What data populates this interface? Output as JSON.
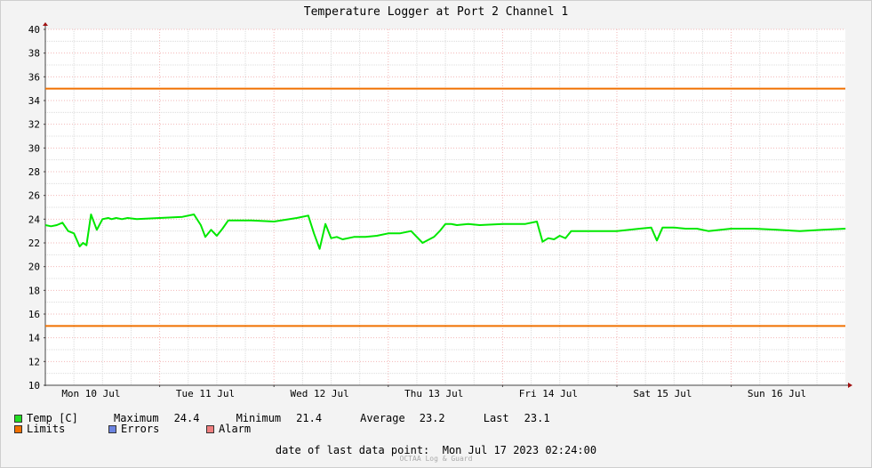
{
  "chart_data": {
    "type": "line",
    "title": "Temperature Logger at Port 2 Channel 1",
    "ylim": [
      10,
      40
    ],
    "yticks": [
      10,
      12,
      14,
      16,
      18,
      20,
      22,
      24,
      26,
      28,
      30,
      32,
      34,
      36,
      38,
      40
    ],
    "x_domain_days": [
      0,
      7
    ],
    "xtick_labels": [
      "Mon 10 Jul",
      "Tue 11 Jul",
      "Wed 12 Jul",
      "Thu 13 Jul",
      "Fri 14 Jul",
      "Sat 15 Jul",
      "Sun 16 Jul"
    ],
    "grid": true,
    "series": [
      {
        "name": "Temp [C]",
        "color": "#00e800",
        "x": [
          0.0,
          0.05,
          0.1,
          0.15,
          0.2,
          0.25,
          0.3,
          0.33,
          0.36,
          0.4,
          0.45,
          0.5,
          0.55,
          0.58,
          0.62,
          0.67,
          0.72,
          0.8,
          1.0,
          1.2,
          1.3,
          1.36,
          1.4,
          1.45,
          1.5,
          1.55,
          1.6,
          1.65,
          1.7,
          1.8,
          2.0,
          2.2,
          2.3,
          2.35,
          2.4,
          2.45,
          2.5,
          2.55,
          2.6,
          2.7,
          2.8,
          2.9,
          3.0,
          3.1,
          3.2,
          3.3,
          3.4,
          3.45,
          3.5,
          3.55,
          3.6,
          3.7,
          3.8,
          4.0,
          4.2,
          4.3,
          4.35,
          4.4,
          4.45,
          4.5,
          4.55,
          4.6,
          4.7,
          4.8,
          5.0,
          5.2,
          5.3,
          5.35,
          5.4,
          5.5,
          5.6,
          5.7,
          5.8,
          6.0,
          6.2,
          6.4,
          6.6,
          6.8,
          7.0
        ],
        "values": [
          23.5,
          23.4,
          23.5,
          23.7,
          23.0,
          22.8,
          21.7,
          22.0,
          21.8,
          24.4,
          23.1,
          24.0,
          24.1,
          24.0,
          24.1,
          24.0,
          24.1,
          24.0,
          24.1,
          24.2,
          24.4,
          23.5,
          22.5,
          23.1,
          22.6,
          23.2,
          23.9,
          23.9,
          23.9,
          23.9,
          23.8,
          24.1,
          24.3,
          22.8,
          21.5,
          23.6,
          22.4,
          22.5,
          22.3,
          22.5,
          22.5,
          22.6,
          22.8,
          22.8,
          23.0,
          22.0,
          22.5,
          23.0,
          23.6,
          23.6,
          23.5,
          23.6,
          23.5,
          23.6,
          23.6,
          23.8,
          22.1,
          22.4,
          22.3,
          22.6,
          22.4,
          23.0,
          23.0,
          23.0,
          23.0,
          23.2,
          23.3,
          22.2,
          23.3,
          23.3,
          23.2,
          23.2,
          23.0,
          23.2,
          23.2,
          23.1,
          23.0,
          23.1,
          23.2
        ]
      },
      {
        "name": "Limits",
        "color": "#f07000",
        "kind": "hlines",
        "values": [
          35,
          15
        ]
      }
    ]
  },
  "legend": {
    "temp": {
      "label": "Temp [C]",
      "color": "#22dd22"
    },
    "stats": {
      "max_label": "Maximum",
      "max_value": "24.4",
      "min_label": "Minimum",
      "min_value": "21.4",
      "avg_label": "Average",
      "avg_value": "23.2",
      "last_label": "Last",
      "last_value": "23.1"
    },
    "limits": {
      "label": "Limits",
      "color": "#f07000"
    },
    "errors": {
      "label": "Errors",
      "color": "#6b83e0"
    },
    "alarm": {
      "label": "Alarm",
      "color": "#ef7e7e"
    }
  },
  "footer": {
    "date_label": "date of last data point:",
    "date_value": "Mon Jul 17 2023 02:24:00",
    "credit": "OCTAA Log & Guard"
  }
}
